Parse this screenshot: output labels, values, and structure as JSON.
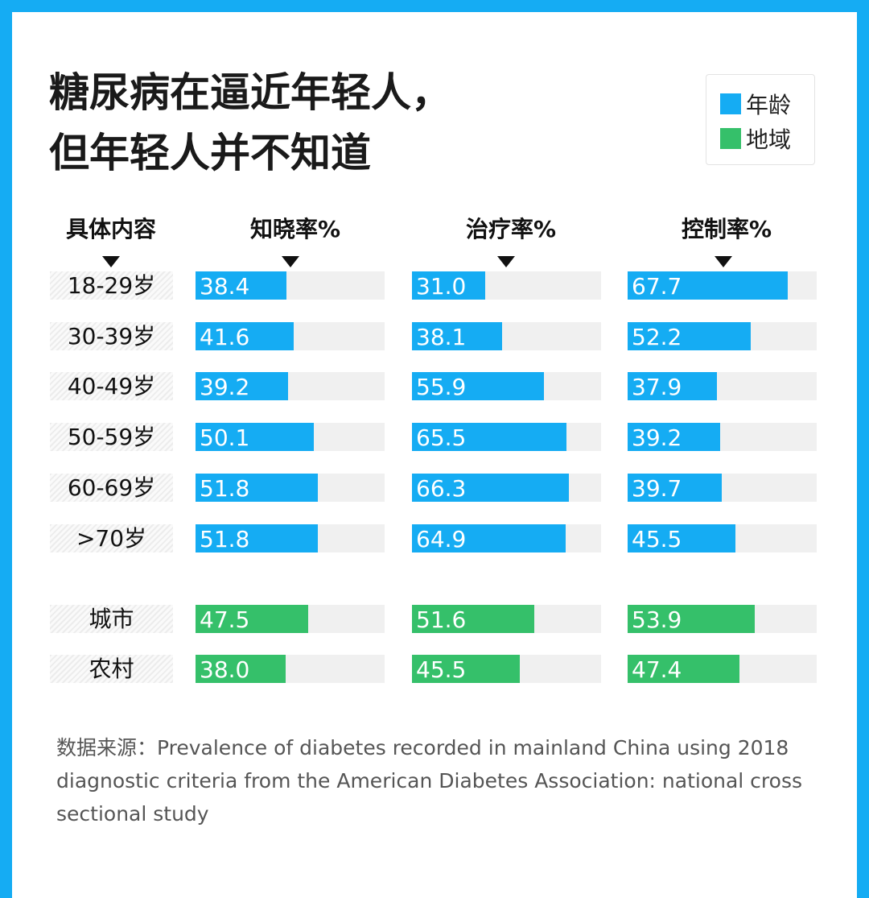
{
  "title_lines": [
    "糖尿病在逼近年轻人，",
    "但年轻人并不知道"
  ],
  "legend": [
    {
      "label": "年龄",
      "color": "#15acf3"
    },
    {
      "label": "地域",
      "color": "#35c06a"
    }
  ],
  "chart_data": {
    "type": "bar",
    "orientation": "horizontal",
    "category_header": "具体内容",
    "columns": [
      "知晓率%",
      "治疗率%",
      "控制率%"
    ],
    "xlim": [
      0,
      80
    ],
    "rows": [
      {
        "label": "18-29岁",
        "group": "年龄",
        "values": [
          38.4,
          31.0,
          67.7
        ]
      },
      {
        "label": "30-39岁",
        "group": "年龄",
        "values": [
          41.6,
          38.1,
          52.2
        ]
      },
      {
        "label": "40-49岁",
        "group": "年龄",
        "values": [
          39.2,
          55.9,
          37.9
        ]
      },
      {
        "label": "50-59岁",
        "group": "年龄",
        "values": [
          50.1,
          65.5,
          39.2
        ]
      },
      {
        "label": "60-69岁",
        "group": "年龄",
        "values": [
          51.8,
          66.3,
          39.7
        ]
      },
      {
        "label": ">70岁",
        "group": "年龄",
        "values": [
          51.8,
          64.9,
          45.5
        ]
      },
      {
        "label": "城市",
        "group": "地域",
        "values": [
          47.5,
          51.6,
          53.9
        ]
      },
      {
        "label": "农村",
        "group": "地域",
        "values": [
          38.0,
          45.5,
          47.4
        ]
      }
    ]
  },
  "source": "数据来源：Prevalence of diabetes recorded in mainland China using 2018 diagnostic criteria from the American Diabetes Association: national cross sectional study"
}
